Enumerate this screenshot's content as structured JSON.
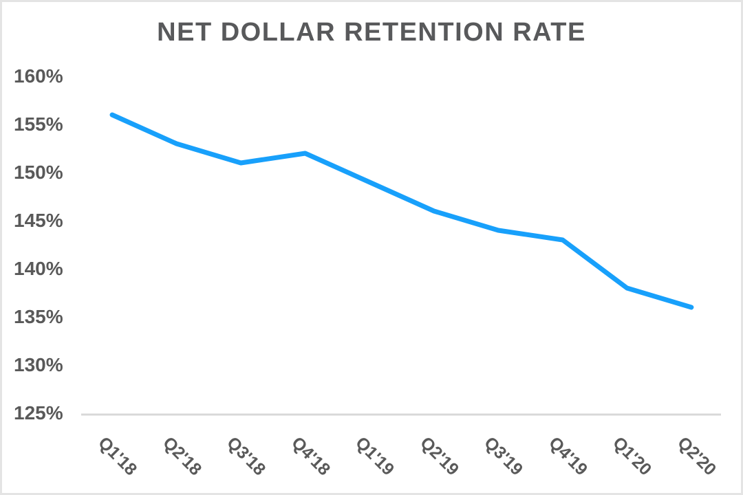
{
  "chart_data": {
    "type": "line",
    "title": "NET DOLLAR RETENTION RATE",
    "categories": [
      "Q1'18",
      "Q2'18",
      "Q3'18",
      "Q4'18",
      "Q1'19",
      "Q2'19",
      "Q3'19",
      "Q4'19",
      "Q1'20",
      "Q2'20"
    ],
    "series": [
      {
        "name": "Net Dollar Retention Rate",
        "values": [
          156,
          153,
          151,
          152,
          149,
          146,
          144,
          143,
          138,
          136
        ]
      }
    ],
    "ylabel": "",
    "xlabel": "",
    "ylim": [
      125,
      160
    ],
    "ytick_step": 5,
    "ytick_labels": [
      "160%",
      "155%",
      "150%",
      "145%",
      "140%",
      "135%",
      "130%",
      "125%"
    ],
    "unit": "%",
    "grid": false,
    "legend": "none",
    "x_label_rotation_deg": 45,
    "colors": {
      "line": "#18a0fb",
      "axis": "#d8d8d8",
      "labels": "#595959",
      "title": "#58595b",
      "frame_border": "#e4e4e4",
      "background": "#ffffff"
    }
  }
}
